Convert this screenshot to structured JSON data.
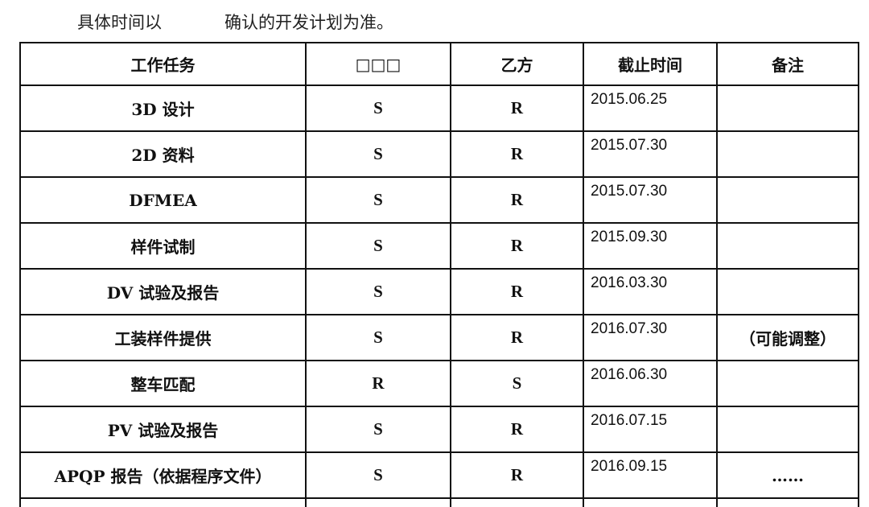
{
  "intro": {
    "before": "具体时间以",
    "after": "确认的开发计划为准。"
  },
  "table": {
    "headers": [
      "工作任务",
      "□□□",
      "乙方",
      "截止时间",
      "备注"
    ],
    "rows": [
      {
        "task": "3D 设计",
        "party_a": "S",
        "party_b": "R",
        "deadline": "2015.06.25",
        "note": ""
      },
      {
        "task": "2D 资料",
        "party_a": "S",
        "party_b": "R",
        "deadline": "2015.07.30",
        "note": ""
      },
      {
        "task": "DFMEA",
        "party_a": "S",
        "party_b": "R",
        "deadline": "2015.07.30",
        "note": ""
      },
      {
        "task": "样件试制",
        "party_a": "S",
        "party_b": "R",
        "deadline": "2015.09.30",
        "note": ""
      },
      {
        "task": "DV 试验及报告",
        "party_a": "S",
        "party_b": "R",
        "deadline": "2016.03.30",
        "note": ""
      },
      {
        "task": "工装样件提供",
        "party_a": "S",
        "party_b": "R",
        "deadline": "2016.07.30",
        "note": "（可能调整）"
      },
      {
        "task": "整车匹配",
        "party_a": "R",
        "party_b": "S",
        "deadline": "2016.06.30",
        "note": ""
      },
      {
        "task": "PV 试验及报告",
        "party_a": "S",
        "party_b": "R",
        "deadline": "2016.07.15",
        "note": ""
      },
      {
        "task": "APQP 报告（依据程序文件）",
        "party_a": "S",
        "party_b": "R",
        "deadline": "2016.09.15",
        "note": "……"
      }
    ]
  }
}
